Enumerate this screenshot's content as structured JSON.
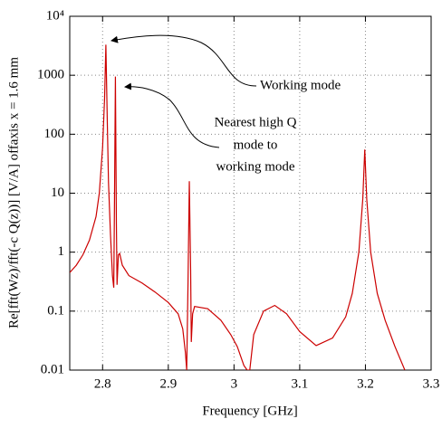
{
  "chart_data": {
    "type": "line",
    "x_label": "Frequency [GHz]",
    "y_label": "Re[fft(Wz)/fft(-c Q(z))] [V/A]  offaxis x = 1.6 mm",
    "annotations": [
      "Working mode",
      "Nearest high Q",
      "mode to",
      "working mode"
    ],
    "xlim": [
      2.75,
      3.3
    ],
    "xticks": [
      2.8,
      2.9,
      3,
      3.1,
      3.2,
      3.3
    ],
    "ylim": [
      0.01,
      10000
    ],
    "log_y": true,
    "yticks": [
      0.01,
      0.1,
      1,
      10,
      100,
      1000,
      {
        "value": 10000,
        "label": "10⁴"
      }
    ],
    "grid": true,
    "series": [
      {
        "color": "#cc0000",
        "x": [
          2.75,
          2.76,
          2.77,
          2.78,
          2.79,
          2.795,
          2.8,
          2.803,
          2.805,
          2.807,
          2.809,
          2.812,
          2.815,
          2.817,
          2.818,
          2.8195,
          2.821,
          2.822,
          2.824,
          2.826,
          2.83,
          2.84,
          2.86,
          2.88,
          2.9,
          2.915,
          2.922,
          2.926,
          2.928,
          2.93,
          2.932,
          2.934,
          2.935,
          2.937,
          2.94,
          2.96,
          2.98,
          2.995,
          3.005,
          3.015,
          3.02,
          3.024,
          3.03,
          3.045,
          3.062,
          3.08,
          3.1,
          3.125,
          3.15,
          3.17,
          3.18,
          3.19,
          3.196,
          3.199,
          3.202,
          3.208,
          3.218,
          3.23,
          3.245,
          3.26
        ],
        "values": [
          0.45,
          0.6,
          0.9,
          1.6,
          4,
          10,
          60,
          400,
          3300,
          200,
          15,
          2,
          0.4,
          0.25,
          5,
          950,
          3,
          0.28,
          0.9,
          0.95,
          0.6,
          0.4,
          0.3,
          0.21,
          0.14,
          0.09,
          0.05,
          0.02,
          0.01,
          0.3,
          16,
          0.5,
          0.03,
          0.09,
          0.12,
          0.11,
          0.07,
          0.04,
          0.025,
          0.012,
          0.01,
          0.01,
          0.04,
          0.1,
          0.125,
          0.09,
          0.045,
          0.026,
          0.035,
          0.08,
          0.2,
          1,
          8,
          55,
          8,
          1,
          0.2,
          0.07,
          0.025,
          0.01
        ]
      }
    ]
  }
}
